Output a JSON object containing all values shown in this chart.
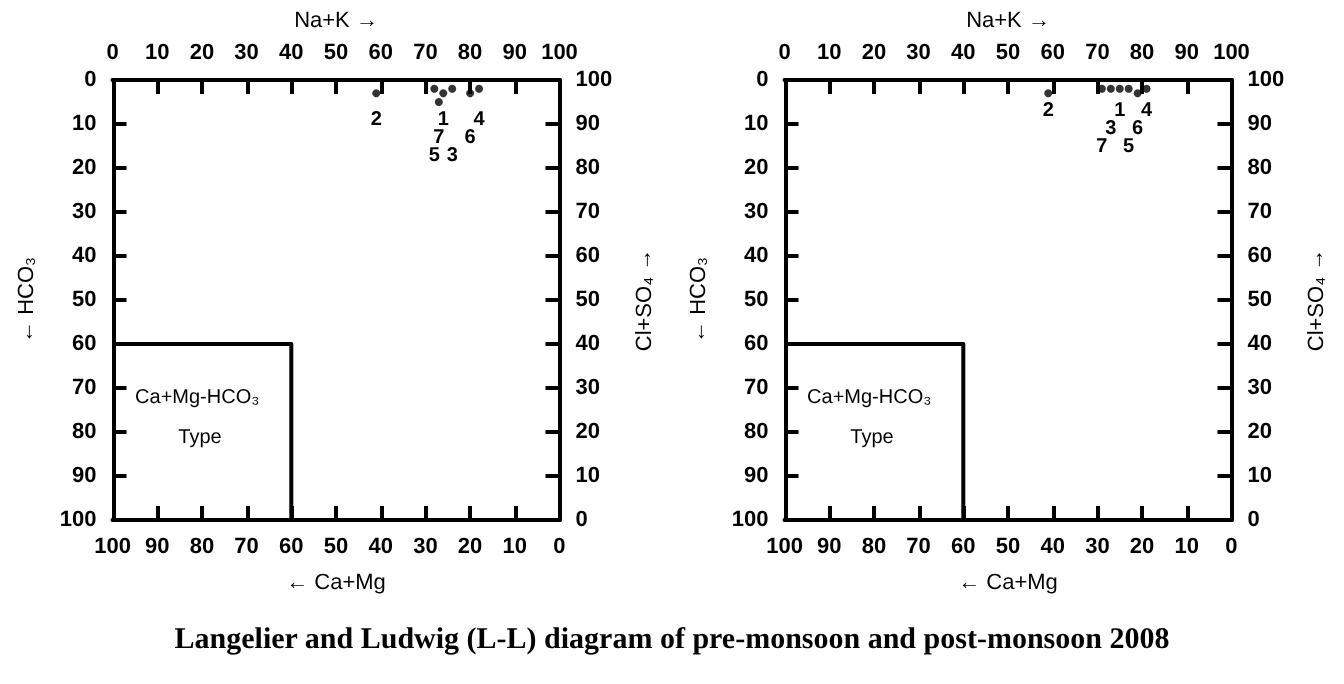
{
  "chart_data": [
    {
      "type": "scatter",
      "title": "Langelier and Ludwig (L-L) diagram of pre-monsoon and post-monsoon 2008",
      "xlabel": "← Ca+Mg",
      "x2label": "Na+K →",
      "ylabel": "← HCO₃",
      "y2label": "Cl+SO₄ →",
      "xlim": [
        100,
        0
      ],
      "xticks": [
        100,
        90,
        80,
        70,
        60,
        50,
        40,
        30,
        20,
        10,
        0
      ],
      "x2lim": [
        0,
        100
      ],
      "x2ticks": [
        0,
        10,
        20,
        30,
        40,
        50,
        60,
        70,
        80,
        90,
        100
      ],
      "ylim": [
        100,
        0
      ],
      "yticks": [
        0,
        10,
        20,
        30,
        40,
        50,
        60,
        70,
        80,
        90,
        100
      ],
      "y2lim": [
        0,
        100
      ],
      "y2ticks": [
        0,
        10,
        20,
        30,
        40,
        50,
        60,
        70,
        80,
        90,
        100
      ],
      "grid": false,
      "series": [
        {
          "color": "#000000",
          "marker": "circle",
          "x": [
            26,
            41,
            24,
            18,
            28,
            20,
            27
          ],
          "values": [
            3,
            3,
            2,
            2,
            2,
            3,
            5
          ]
        },
        {
          "type": "line",
          "color": "#000000",
          "x": [
            100,
            60,
            60
          ],
          "values": [
            60,
            60,
            100
          ]
        }
      ],
      "annotations": [
        {
          "text": "1",
          "x": 26,
          "y": 3
        },
        {
          "text": "2",
          "x": 41,
          "y": 3
        },
        {
          "text": "3",
          "x": 24,
          "y": 2
        },
        {
          "text": "4",
          "x": 18,
          "y": 2
        },
        {
          "text": "5",
          "x": 28,
          "y": 2
        },
        {
          "text": "6",
          "x": 20,
          "y": 3
        },
        {
          "text": "7",
          "x": 27,
          "y": 5
        },
        "Ca+Mg-HCO₃ Type"
      ]
    },
    {
      "type": "scatter",
      "xlabel": "← Ca+Mg",
      "x2label": "Na+K →",
      "ylabel": "← HCO₃",
      "y2label": "Cl+SO₄ →",
      "xlim": [
        100,
        0
      ],
      "xticks": [
        100,
        90,
        80,
        70,
        60,
        50,
        40,
        30,
        20,
        10,
        0
      ],
      "x2lim": [
        0,
        100
      ],
      "x2ticks": [
        0,
        10,
        20,
        30,
        40,
        50,
        60,
        70,
        80,
        90,
        100
      ],
      "ylim": [
        100,
        0
      ],
      "yticks": [
        0,
        10,
        20,
        30,
        40,
        50,
        60,
        70,
        80,
        90,
        100
      ],
      "y2lim": [
        0,
        100
      ],
      "y2ticks": [
        0,
        10,
        20,
        30,
        40,
        50,
        60,
        70,
        80,
        90,
        100
      ],
      "grid": false,
      "series": [
        {
          "color": "#000000",
          "marker": "circle",
          "x": [
            25,
            41,
            27,
            19,
            23,
            21,
            29
          ],
          "values": [
            2,
            3,
            2,
            2,
            2,
            3,
            2
          ]
        },
        {
          "type": "line",
          "color": "#000000",
          "x": [
            100,
            60,
            60
          ],
          "values": [
            60,
            60,
            100
          ]
        }
      ],
      "annotations": [
        {
          "text": "1",
          "x": 25,
          "y": 2
        },
        {
          "text": "2",
          "x": 41,
          "y": 3
        },
        {
          "text": "3",
          "x": 27,
          "y": 2
        },
        {
          "text": "4",
          "x": 19,
          "y": 2
        },
        {
          "text": "5",
          "x": 23,
          "y": 2
        },
        {
          "text": "6",
          "x": 21,
          "y": 3
        },
        {
          "text": "7",
          "x": 29,
          "y": 2
        },
        "Ca+Mg-HCO₃ Type"
      ]
    }
  ]
}
